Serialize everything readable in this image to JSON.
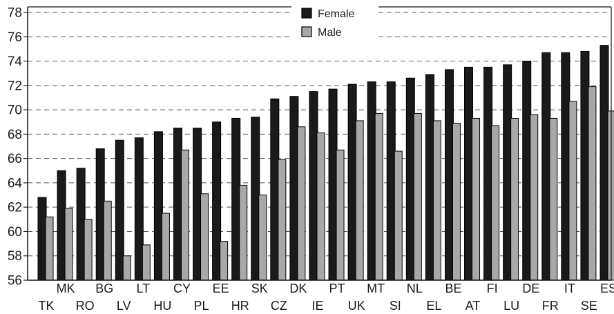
{
  "chart_data": {
    "type": "bar",
    "categories": [
      "TK",
      "MK",
      "RO",
      "BG",
      "LV",
      "LT",
      "HU",
      "CY",
      "PL",
      "EE",
      "HR",
      "SK",
      "CZ",
      "DK",
      "IE",
      "PT",
      "UK",
      "MT",
      "SI",
      "NL",
      "EL",
      "BE",
      "AT",
      "FI",
      "LU",
      "DE",
      "FR",
      "IT",
      "SE",
      "ES"
    ],
    "series": [
      {
        "name": "Female",
        "color": "#1a1a1a",
        "values": [
          62.8,
          65.0,
          65.2,
          66.8,
          67.5,
          67.7,
          68.2,
          68.5,
          68.5,
          69.0,
          69.3,
          69.4,
          70.9,
          71.1,
          71.5,
          71.7,
          72.1,
          72.3,
          72.3,
          72.6,
          72.9,
          73.3,
          73.5,
          73.5,
          73.7,
          74.0,
          74.7,
          74.7,
          74.8,
          75.3
        ]
      },
      {
        "name": "Male",
        "color": "#a8a8a8",
        "values": [
          61.2,
          61.9,
          61.0,
          62.5,
          58.0,
          58.9,
          61.5,
          66.7,
          63.1,
          59.2,
          63.8,
          63.0,
          65.9,
          68.6,
          68.1,
          66.7,
          69.1,
          69.7,
          66.6,
          69.7,
          69.1,
          68.9,
          69.3,
          68.7,
          69.3,
          69.6,
          69.3,
          70.7,
          71.9,
          69.9
        ]
      }
    ],
    "ylim": [
      56,
      78
    ],
    "yticks": [
      "56",
      "58",
      "60",
      "62",
      "64",
      "66",
      "68",
      "70",
      "72",
      "74",
      "76",
      "78"
    ],
    "grid": true,
    "legend_position": "top-center"
  }
}
